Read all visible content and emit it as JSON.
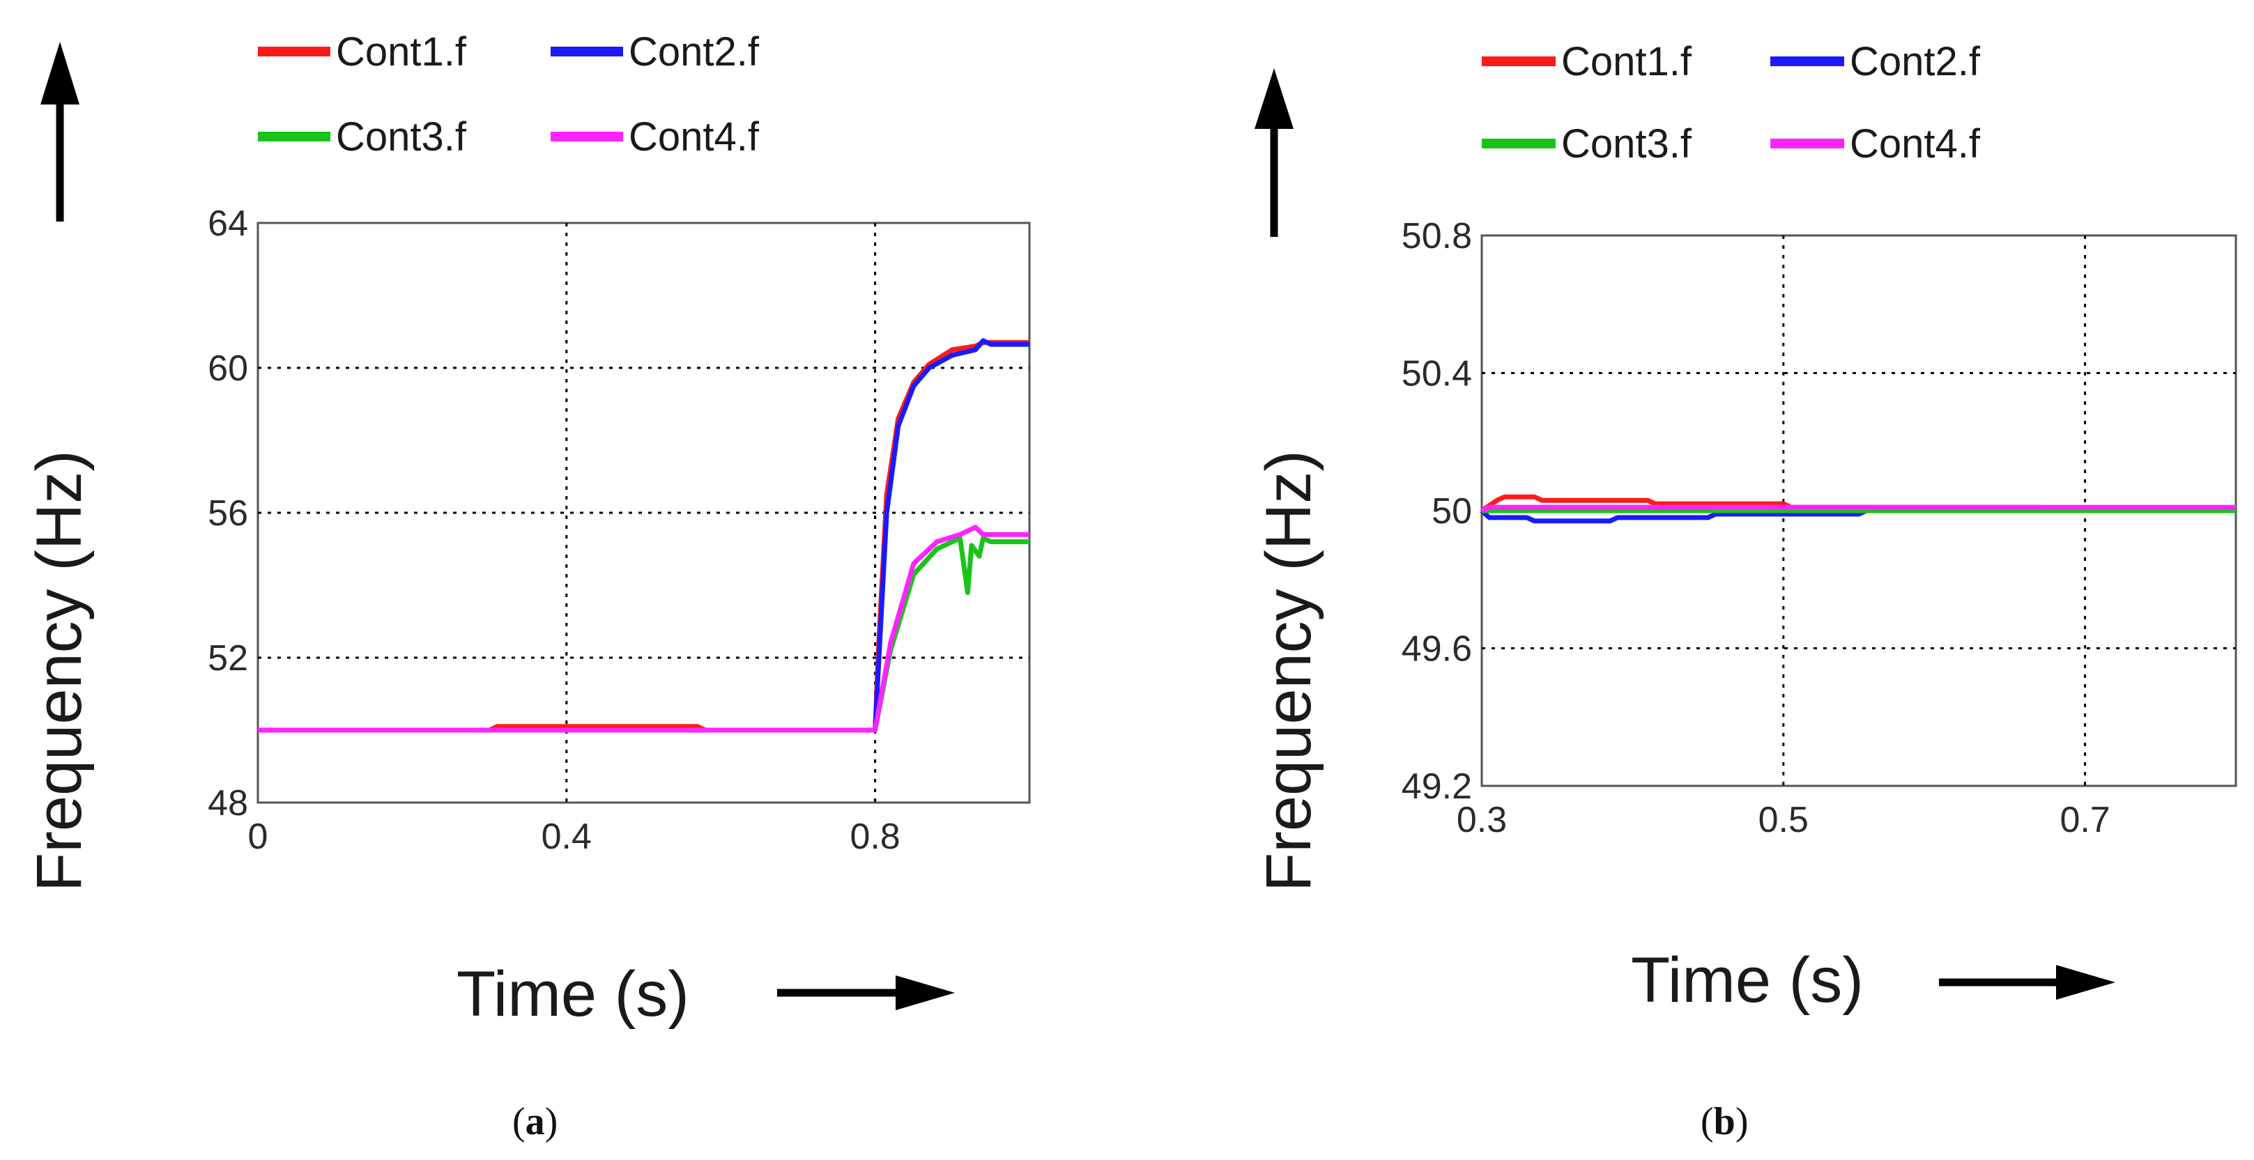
{
  "chart_data": [
    {
      "type": "line",
      "panel": "a",
      "caption": "(a)",
      "caption_letter": "a",
      "xlabel": "Time (s)",
      "ylabel": "Frequency (Hz)",
      "xlim": [
        0,
        1.0
      ],
      "ylim": [
        48,
        64
      ],
      "xticks": [
        0,
        0.4,
        0.8
      ],
      "xtick_labels": [
        "0",
        "0.4",
        "0.8"
      ],
      "yticks": [
        48,
        52,
        56,
        60,
        64
      ],
      "ytick_labels": [
        "48",
        "52",
        "56",
        "60",
        "64"
      ],
      "grid": true,
      "legend": [
        "Cont1.f",
        "Cont2.f",
        "Cont3.f",
        "Cont4.f"
      ],
      "series": [
        {
          "name": "Cont1.f",
          "color": "#ff1a1a",
          "x": [
            0,
            0.3,
            0.31,
            0.57,
            0.58,
            0.8,
            0.805,
            0.815,
            0.83,
            0.85,
            0.87,
            0.9,
            0.93,
            0.94,
            1.0
          ],
          "y": [
            50,
            50,
            50.1,
            50.1,
            50,
            50,
            52.5,
            56.5,
            58.6,
            59.6,
            60.1,
            60.5,
            60.6,
            60.7,
            60.7
          ]
        },
        {
          "name": "Cont2.f",
          "color": "#1a1aff",
          "x": [
            0,
            0.8,
            0.805,
            0.815,
            0.83,
            0.85,
            0.87,
            0.9,
            0.93,
            0.94,
            0.95,
            1.0
          ],
          "y": [
            50,
            50,
            52.0,
            56.0,
            58.4,
            59.5,
            60.0,
            60.35,
            60.5,
            60.75,
            60.65,
            60.65
          ]
        },
        {
          "name": "Cont3.f",
          "color": "#19c419",
          "x": [
            0,
            0.8,
            0.82,
            0.85,
            0.88,
            0.91,
            0.92,
            0.925,
            0.935,
            0.94,
            0.95,
            1.0
          ],
          "y": [
            50,
            50,
            52.2,
            54.3,
            55.0,
            55.3,
            53.8,
            55.1,
            54.8,
            55.3,
            55.2,
            55.2
          ]
        },
        {
          "name": "Cont4.f",
          "color": "#ff24ff",
          "x": [
            0,
            0.8,
            0.82,
            0.85,
            0.88,
            0.91,
            0.93,
            0.94,
            0.96,
            1.0
          ],
          "y": [
            50,
            50,
            52.4,
            54.6,
            55.2,
            55.4,
            55.6,
            55.4,
            55.4,
            55.4
          ]
        }
      ]
    },
    {
      "type": "line",
      "panel": "b",
      "caption": "(b)",
      "caption_letter": "b",
      "xlabel": "Time (s)",
      "ylabel": "Frequency (Hz)",
      "xlim": [
        0.3,
        0.8
      ],
      "ylim": [
        49.2,
        50.8
      ],
      "xticks": [
        0.3,
        0.5,
        0.7
      ],
      "xtick_labels": [
        "0.3",
        "0.5",
        "0.7"
      ],
      "yticks": [
        49.2,
        49.6,
        50.0,
        50.4,
        50.8
      ],
      "ytick_labels": [
        "49.2",
        "49.6",
        "50",
        "50.4",
        "50.8"
      ],
      "grid": true,
      "legend": [
        "Cont1.f",
        "Cont2.f",
        "Cont3.f",
        "Cont4.f"
      ],
      "series": [
        {
          "name": "Cont1.f",
          "color": "#ff1a1a",
          "x": [
            0.3,
            0.31,
            0.315,
            0.335,
            0.34,
            0.41,
            0.415,
            0.5,
            0.505,
            0.67,
            0.675,
            0.8
          ],
          "y": [
            50.0,
            50.03,
            50.04,
            50.04,
            50.03,
            50.03,
            50.02,
            50.02,
            50.01,
            50.01,
            50.0,
            50.0
          ]
        },
        {
          "name": "Cont2.f",
          "color": "#1a1aff",
          "x": [
            0.3,
            0.305,
            0.33,
            0.335,
            0.385,
            0.39,
            0.45,
            0.455,
            0.55,
            0.555,
            0.8
          ],
          "y": [
            50.0,
            49.98,
            49.98,
            49.97,
            49.97,
            49.98,
            49.98,
            49.99,
            49.99,
            50.0,
            50.0
          ]
        },
        {
          "name": "Cont3.f",
          "color": "#19c419",
          "x": [
            0.3,
            0.8
          ],
          "y": [
            50.0,
            50.0
          ]
        },
        {
          "name": "Cont4.f",
          "color": "#ff24ff",
          "x": [
            0.3,
            0.305,
            0.8
          ],
          "y": [
            50.0,
            50.01,
            50.01
          ]
        }
      ]
    }
  ]
}
